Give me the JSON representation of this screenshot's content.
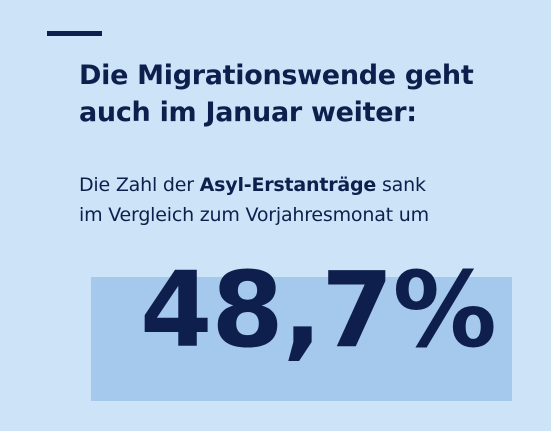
{
  "headline": {
    "line1": "Die Migrationswende geht",
    "line2": "auch im Januar weiter:"
  },
  "body": {
    "line1_prefix": "Die Zahl der ",
    "line1_bold": "Asyl-Erstanträge",
    "line1_suffix": " sank",
    "line2": "im Vergleich zum Vorjahresmonat um"
  },
  "stat": {
    "value": "48,7%"
  },
  "colors": {
    "background": "#cde3f7",
    "highlight": "#a5c9ec",
    "text": "#0e1f4d"
  }
}
